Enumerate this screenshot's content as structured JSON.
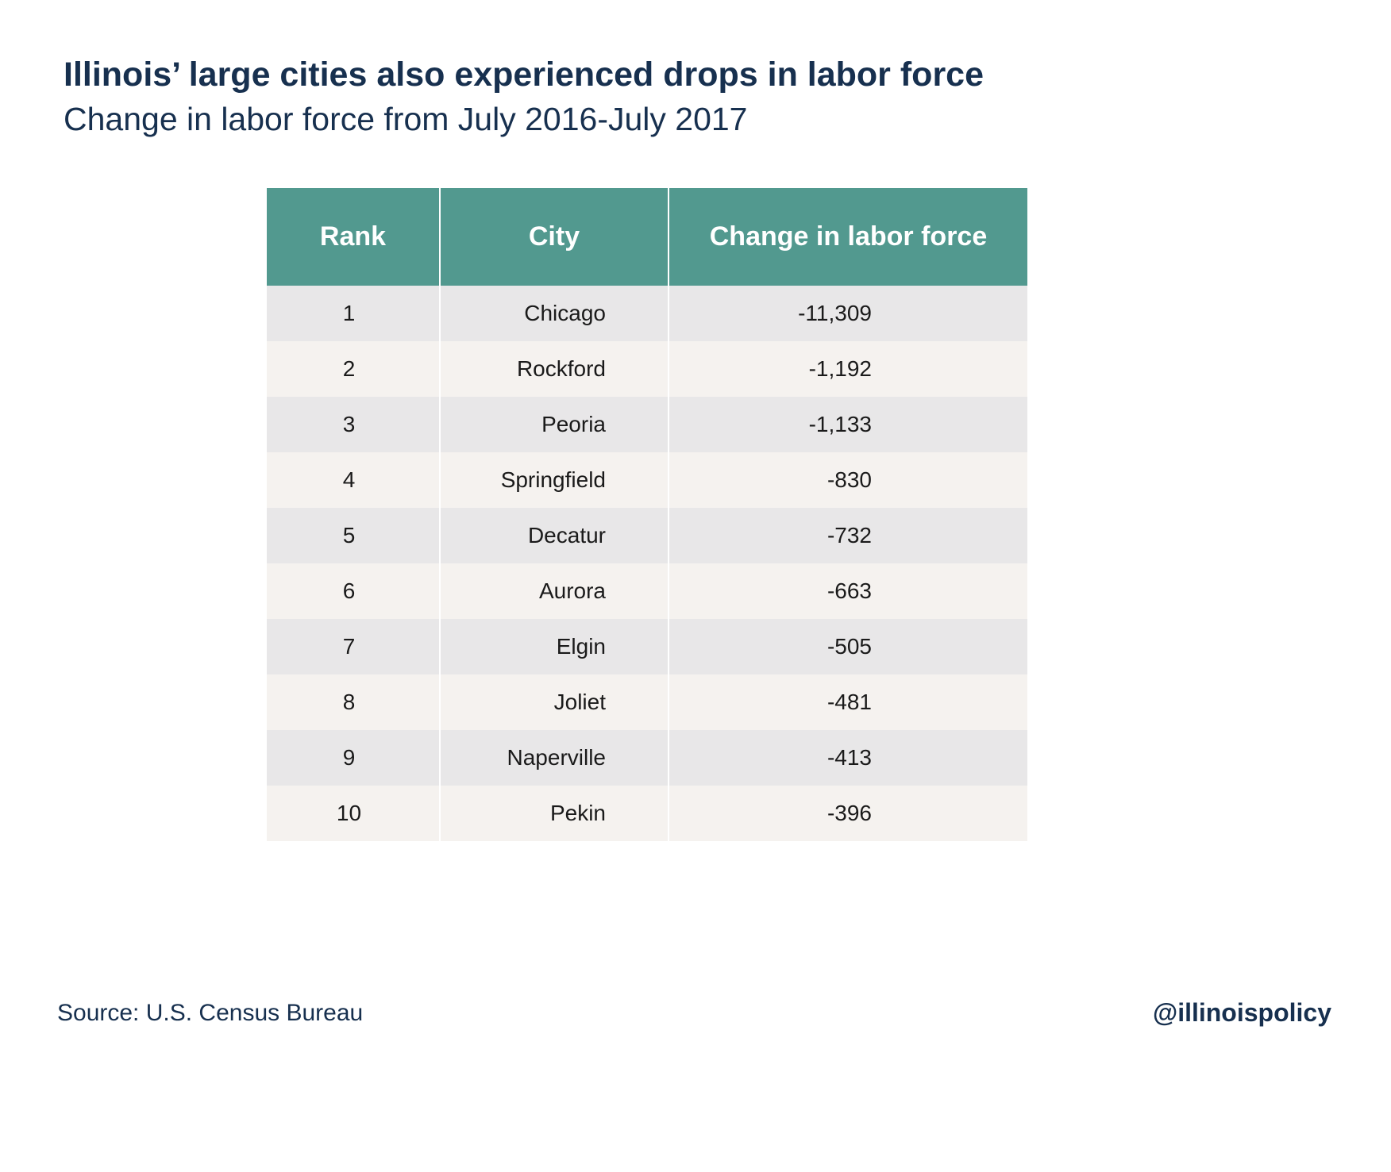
{
  "title": "Illinois’ large cities also experienced drops in labor force",
  "subtitle": "Change in labor force from July 2016-July 2017",
  "source": "Source: U.S. Census Bureau",
  "handle": "@illinoispolicy",
  "colors": {
    "header_bg": "#52998f",
    "row_odd": "#e8e7e8",
    "row_even": "#f5f2ef",
    "text_dark": "#17304f"
  },
  "chart_data": {
    "type": "table",
    "columns": [
      "Rank",
      "City",
      "Change in labor force"
    ],
    "rows": [
      [
        "1",
        "Chicago",
        "-11,309"
      ],
      [
        "2",
        "Rockford",
        "-1,192"
      ],
      [
        "3",
        "Peoria",
        "-1,133"
      ],
      [
        "4",
        "Springfield",
        "-830"
      ],
      [
        "5",
        "Decatur",
        "-732"
      ],
      [
        "6",
        "Aurora",
        "-663"
      ],
      [
        "7",
        "Elgin",
        "-505"
      ],
      [
        "8",
        "Joliet",
        "-481"
      ],
      [
        "9",
        "Naperville",
        "-413"
      ],
      [
        "10",
        "Pekin",
        "-396"
      ]
    ]
  }
}
